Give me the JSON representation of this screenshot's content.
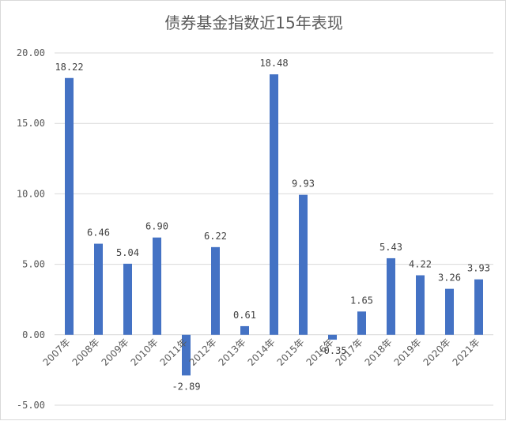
{
  "chart_data": {
    "type": "bar",
    "title": "债券基金指数近15年表现",
    "categories": [
      "2007年",
      "2008年",
      "2009年",
      "2010年",
      "2011年",
      "2012年",
      "2013年",
      "2014年",
      "2015年",
      "2016年",
      "2017年",
      "2018年",
      "2019年",
      "2020年",
      "2021年"
    ],
    "values": [
      18.22,
      6.46,
      5.04,
      6.9,
      -2.89,
      6.22,
      0.61,
      18.48,
      9.93,
      -0.35,
      1.65,
      5.43,
      4.22,
      3.26,
      3.93
    ],
    "data_labels": [
      "18.22",
      "6.46",
      "5.04",
      "6.90",
      "-2.89",
      "6.22",
      "0.61",
      "18.48",
      "9.93",
      "-0.35",
      "1.65",
      "5.43",
      "4.22",
      "3.26",
      "3.93"
    ],
    "ylim": [
      -5,
      20
    ],
    "yticks": [
      20,
      15,
      10,
      5,
      0,
      -5
    ],
    "ytick_labels": [
      "20.00",
      "15.00",
      "10.00",
      "5.00",
      "0.00",
      "-5.00"
    ],
    "grid": true,
    "bar_color": "#4472C4",
    "xlabel": "",
    "ylabel": ""
  }
}
